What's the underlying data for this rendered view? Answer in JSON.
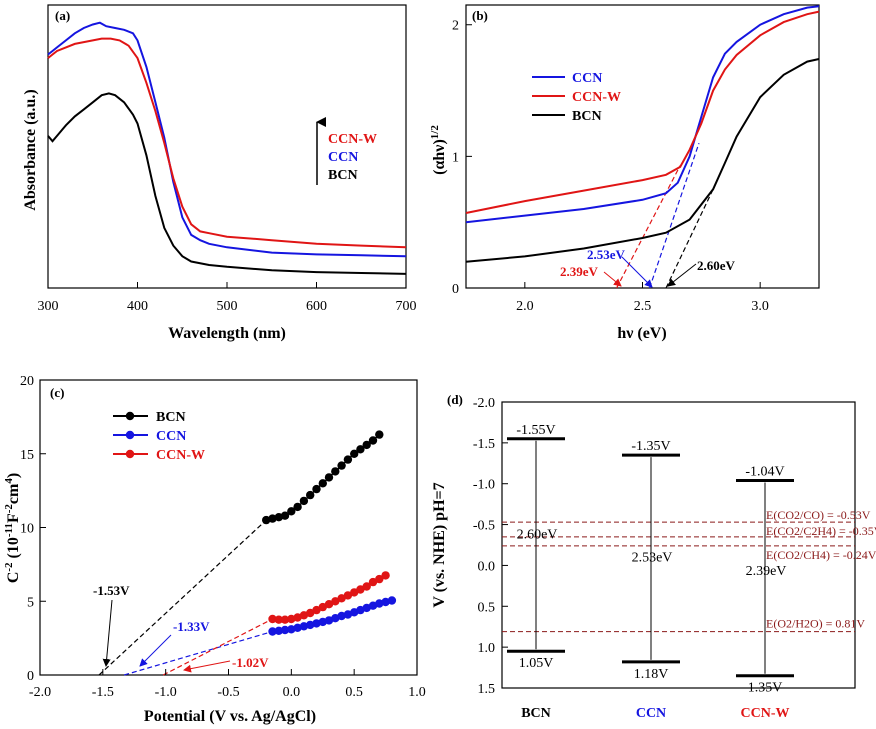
{
  "chart_data": [
    {
      "panel": "(a)",
      "type": "line",
      "xlabel": "Wavelength (nm)",
      "ylabel": "Absorbance (a.u.)",
      "xlim": [
        300,
        700
      ],
      "xticks": [
        "300",
        "400",
        "500",
        "600",
        "700"
      ],
      "arrow_labels": [
        "CCN-W",
        "CCN",
        "BCN"
      ],
      "series": [
        {
          "name": "CCN",
          "color": "#1515e0",
          "x": [
            300,
            305,
            310,
            320,
            330,
            340,
            350,
            358,
            365,
            375,
            385,
            395,
            400,
            410,
            420,
            430,
            440,
            450,
            460,
            470,
            480,
            500,
            550,
            600,
            650,
            700
          ],
          "y": [
            1.32,
            1.34,
            1.36,
            1.4,
            1.44,
            1.47,
            1.49,
            1.5,
            1.48,
            1.47,
            1.46,
            1.44,
            1.4,
            1.25,
            1.05,
            0.85,
            0.6,
            0.4,
            0.3,
            0.27,
            0.25,
            0.23,
            0.2,
            0.19,
            0.185,
            0.18
          ]
        },
        {
          "name": "CCN-W",
          "color": "#e01515",
          "x": [
            300,
            305,
            310,
            320,
            330,
            340,
            350,
            360,
            370,
            380,
            390,
            400,
            410,
            420,
            430,
            440,
            450,
            460,
            470,
            480,
            500,
            550,
            600,
            650,
            700
          ],
          "y": [
            1.3,
            1.32,
            1.34,
            1.36,
            1.38,
            1.39,
            1.4,
            1.41,
            1.41,
            1.4,
            1.37,
            1.3,
            1.16,
            1.0,
            0.82,
            0.62,
            0.46,
            0.36,
            0.32,
            0.31,
            0.29,
            0.27,
            0.25,
            0.24,
            0.23
          ]
        },
        {
          "name": "BCN",
          "color": "#000000",
          "x": [
            300,
            305,
            310,
            320,
            330,
            340,
            350,
            360,
            368,
            375,
            385,
            395,
            400,
            410,
            420,
            430,
            440,
            450,
            460,
            480,
            500,
            550,
            600,
            650,
            700
          ],
          "y": [
            0.86,
            0.83,
            0.86,
            0.92,
            0.97,
            1.01,
            1.05,
            1.09,
            1.1,
            1.09,
            1.05,
            0.98,
            0.93,
            0.75,
            0.52,
            0.34,
            0.24,
            0.18,
            0.15,
            0.13,
            0.12,
            0.1,
            0.09,
            0.085,
            0.08
          ]
        }
      ]
    },
    {
      "panel": "(b)",
      "type": "line",
      "xlabel": "hν (eV)",
      "ylabel": "(αhν)^1/2",
      "xlim": [
        1.75,
        3.25
      ],
      "ylim": [
        0,
        2.15
      ],
      "xticks": [
        "2.0",
        "2.5",
        "3.0"
      ],
      "yticks": [
        "0",
        "1",
        "2"
      ],
      "series": [
        {
          "name": "CCN",
          "color": "#1515e0",
          "x": [
            1.75,
            2.0,
            2.25,
            2.5,
            2.6,
            2.65,
            2.7,
            2.75,
            2.8,
            2.85,
            2.9,
            3.0,
            3.1,
            3.2,
            3.25
          ],
          "y": [
            0.5,
            0.55,
            0.6,
            0.67,
            0.72,
            0.8,
            1.0,
            1.3,
            1.6,
            1.78,
            1.87,
            2.0,
            2.08,
            2.13,
            2.14
          ]
        },
        {
          "name": "CCN-W",
          "color": "#e01515",
          "x": [
            1.75,
            2.0,
            2.25,
            2.5,
            2.6,
            2.66,
            2.7,
            2.75,
            2.8,
            2.85,
            2.9,
            3.0,
            3.1,
            3.2,
            3.25
          ],
          "y": [
            0.57,
            0.66,
            0.74,
            0.82,
            0.86,
            0.92,
            1.05,
            1.25,
            1.5,
            1.66,
            1.77,
            1.92,
            2.02,
            2.08,
            2.1
          ]
        },
        {
          "name": "BCN",
          "color": "#000000",
          "x": [
            1.75,
            2.0,
            2.25,
            2.5,
            2.6,
            2.7,
            2.8,
            2.85,
            2.9,
            3.0,
            3.1,
            3.2,
            3.25
          ],
          "y": [
            0.2,
            0.24,
            0.3,
            0.38,
            0.42,
            0.52,
            0.75,
            0.95,
            1.15,
            1.45,
            1.62,
            1.72,
            1.74
          ]
        }
      ],
      "tangents": [
        {
          "name": "CCN",
          "x0": 2.53,
          "x1": 2.74,
          "y1": 1.1
        },
        {
          "name": "CCN-W",
          "x0": 2.39,
          "x1": 2.66,
          "y1": 0.93
        },
        {
          "name": "BCN",
          "x0": 2.6,
          "x1": 2.8,
          "y1": 0.75
        }
      ],
      "annotations": [
        "2.53eV",
        "2.39eV",
        "2.60eV"
      ]
    },
    {
      "panel": "(c)",
      "type": "scatter",
      "xlabel": "Potential (V vs. Ag/AgCl)",
      "ylabel": "C^-2 (10^-11 F^-2 cm^4)",
      "xlim": [
        -2.0,
        1.0
      ],
      "ylim": [
        0,
        20
      ],
      "xticks": [
        "-2.0",
        "-1.5",
        "-1.0",
        "-0.5",
        "0.0",
        "0.5",
        "1.0"
      ],
      "yticks": [
        "0",
        "5",
        "10",
        "15",
        "20"
      ],
      "series": [
        {
          "name": "BCN",
          "color": "#000000",
          "x": [
            -0.2,
            -0.15,
            -0.1,
            -0.05,
            0.0,
            0.05,
            0.1,
            0.15,
            0.2,
            0.25,
            0.3,
            0.35,
            0.4,
            0.45,
            0.5,
            0.55,
            0.6,
            0.65,
            0.7
          ],
          "y": [
            10.5,
            10.6,
            10.7,
            10.8,
            11.1,
            11.4,
            11.8,
            12.2,
            12.6,
            13.0,
            13.4,
            13.8,
            14.2,
            14.6,
            15.0,
            15.3,
            15.6,
            15.9,
            16.3
          ]
        },
        {
          "name": "CCN",
          "color": "#1515e0",
          "x": [
            -0.15,
            -0.1,
            -0.05,
            0.0,
            0.05,
            0.1,
            0.15,
            0.2,
            0.25,
            0.3,
            0.35,
            0.4,
            0.45,
            0.5,
            0.55,
            0.6,
            0.65,
            0.7,
            0.75,
            0.8
          ],
          "y": [
            2.95,
            3.0,
            3.05,
            3.1,
            3.2,
            3.3,
            3.4,
            3.5,
            3.6,
            3.7,
            3.85,
            4.0,
            4.1,
            4.25,
            4.4,
            4.55,
            4.7,
            4.85,
            4.95,
            5.05
          ]
        },
        {
          "name": "CCN-W",
          "color": "#e01515",
          "x": [
            -0.15,
            -0.1,
            -0.05,
            0.0,
            0.05,
            0.1,
            0.15,
            0.2,
            0.25,
            0.3,
            0.35,
            0.4,
            0.45,
            0.5,
            0.55,
            0.6,
            0.65,
            0.7,
            0.75
          ],
          "y": [
            3.8,
            3.75,
            3.75,
            3.8,
            3.9,
            4.05,
            4.2,
            4.4,
            4.6,
            4.8,
            5.0,
            5.2,
            5.4,
            5.6,
            5.8,
            6.0,
            6.3,
            6.5,
            6.75
          ]
        }
      ],
      "flatband_lines": [
        {
          "name": "BCN",
          "x0": -1.53,
          "x1": -0.2,
          "y1": 10.5
        },
        {
          "name": "CCN",
          "x0": -1.33,
          "x1": -0.15,
          "y1": 2.95
        },
        {
          "name": "CCN-W",
          "x0": -1.02,
          "x1": -0.15,
          "y1": 3.8
        }
      ],
      "annotations": [
        "-1.53V",
        "-1.33V",
        "-1.02V"
      ]
    },
    {
      "panel": "(d)",
      "type": "band diagram",
      "ylabel": "V (vs. NHE) pH=7",
      "ylim": [
        -2.0,
        1.5
      ],
      "yticks": [
        "-2.0",
        "-1.5",
        "-1.0",
        "-0.5",
        "0.0",
        "0.5",
        "1.0",
        "1.5"
      ],
      "materials": [
        {
          "name": "BCN",
          "cb": -1.55,
          "vb": 1.05,
          "gap": 2.6,
          "cb_label": "-1.55V",
          "vb_label": "1.05V",
          "gap_label": "2.60eV"
        },
        {
          "name": "CCN",
          "cb": -1.35,
          "vb": 1.18,
          "gap": 2.53,
          "cb_label": "-1.35V",
          "vb_label": "1.18V",
          "gap_label": "2.53eV"
        },
        {
          "name": "CCN-W",
          "cb": -1.04,
          "vb": 1.35,
          "gap": 2.39,
          "cb_label": "-1.04V",
          "vb_label": "1.35V",
          "gap_label": "2.39eV"
        }
      ],
      "redox": [
        {
          "value": -0.53,
          "label": "E(CO2/CO) = -0.53V"
        },
        {
          "value": -0.35,
          "label": "E(CO2/C2H4) = -0.35V"
        },
        {
          "value": -0.24,
          "label": "E(CO2/CH4) = -0.24V"
        },
        {
          "value": 0.81,
          "label": "E(O2/H2O) = 0.81V"
        }
      ]
    }
  ]
}
